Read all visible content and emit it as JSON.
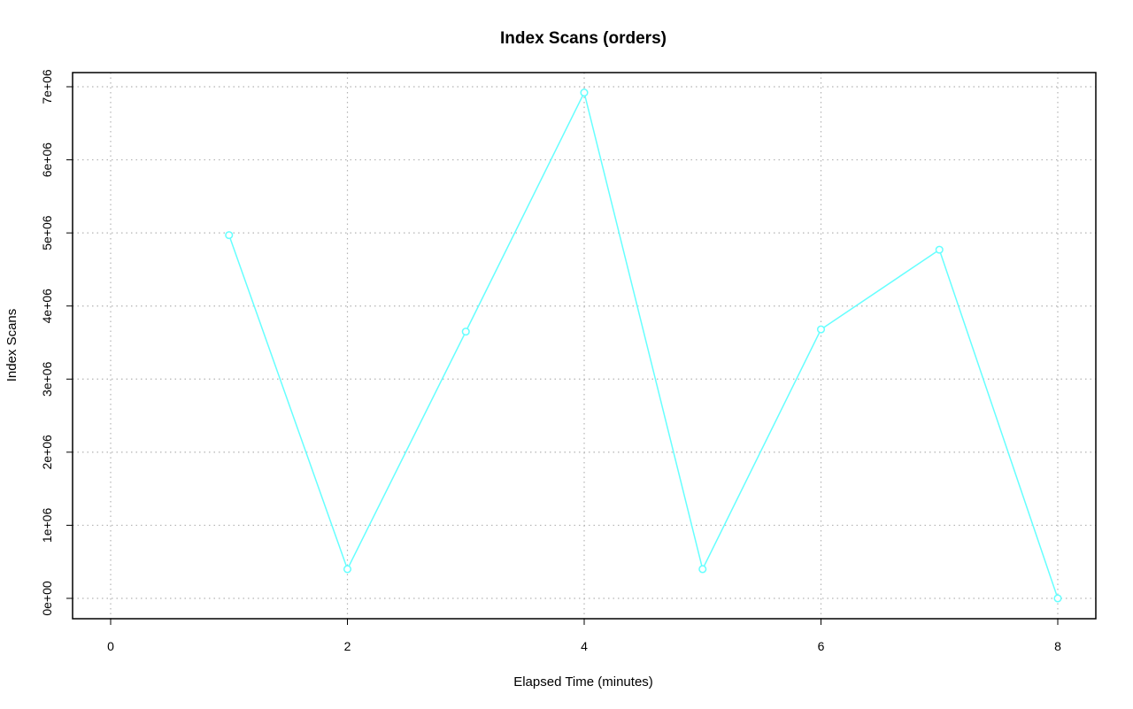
{
  "chart_data": {
    "type": "line",
    "title": "Index Scans (orders)",
    "xlabel": "Elapsed Time (minutes)",
    "ylabel": "Index Scans",
    "xlim": [
      0,
      8
    ],
    "ylim": [
      0,
      7000000
    ],
    "x_ticks": [
      0,
      2,
      4,
      6,
      8
    ],
    "x_tick_labels": [
      "0",
      "2",
      "4",
      "6",
      "8"
    ],
    "y_ticks": [
      0,
      1000000,
      2000000,
      3000000,
      4000000,
      5000000,
      6000000,
      7000000
    ],
    "y_tick_labels": [
      "0e+00",
      "1e+06",
      "2e+06",
      "3e+06",
      "4e+06",
      "5e+06",
      "6e+06",
      "7e+06"
    ],
    "grid": true,
    "series": [
      {
        "color": "#66ffff",
        "x": [
          1,
          2,
          3,
          4,
          5,
          6,
          7,
          8
        ],
        "y": [
          4970000,
          400000,
          3650000,
          6920000,
          400000,
          3680000,
          4770000,
          0
        ]
      }
    ]
  },
  "colors": {
    "series_line": "#66ffff",
    "grid": "#b3b3b3",
    "axis": "#000000"
  }
}
